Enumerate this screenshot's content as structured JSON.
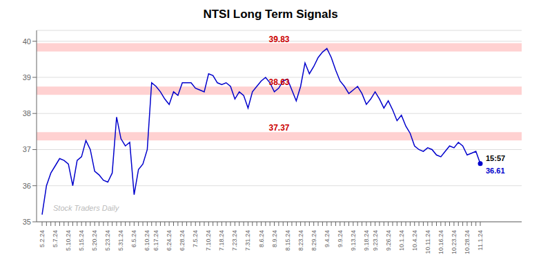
{
  "chart_data": {
    "type": "line",
    "title": "NTSI Long Term Signals",
    "categories": [
      "5.2.24",
      null,
      null,
      "5.7.24",
      null,
      null,
      "5.10.24",
      null,
      null,
      "5.15.24",
      null,
      null,
      "5.20.24",
      null,
      null,
      "5.23.24",
      null,
      null,
      "5.31.24",
      null,
      null,
      "6.5.24",
      null,
      null,
      "6.10.24",
      null,
      "6.17.24",
      null,
      null,
      "6.24.24",
      null,
      null,
      "6.28.24",
      null,
      null,
      "7.5.24",
      null,
      null,
      "7.10.24",
      null,
      null,
      "7.18.24",
      null,
      null,
      "7.23.24",
      null,
      null,
      "7.31.24",
      null,
      null,
      "8.6.24",
      null,
      null,
      "8.9.24",
      null,
      null,
      "8.15.24",
      null,
      null,
      "8.23.24",
      null,
      null,
      "8.29.24",
      null,
      null,
      "9.4.24",
      null,
      null,
      "9.9.24",
      null,
      null,
      "9.13.24",
      null,
      null,
      "9.18.24",
      null,
      "9.23.24",
      null,
      null,
      "9.26.24",
      null,
      null,
      "10.1.24",
      null,
      null,
      "10.4.24",
      null,
      null,
      "10.11.24",
      null,
      null,
      "10.16.24",
      null,
      null,
      "10.23.24",
      null,
      null,
      "10.28.24",
      null,
      null,
      "11.1.24"
    ],
    "values": [
      35.2,
      36.0,
      36.35,
      36.55,
      36.75,
      36.7,
      36.6,
      36.0,
      36.7,
      36.8,
      37.25,
      37.0,
      36.4,
      36.3,
      36.15,
      36.1,
      36.35,
      37.9,
      37.3,
      37.1,
      37.2,
      35.75,
      36.45,
      36.6,
      37.0,
      38.85,
      38.75,
      38.6,
      38.4,
      38.25,
      38.6,
      38.5,
      38.85,
      38.85,
      38.85,
      38.7,
      38.65,
      38.6,
      39.1,
      39.05,
      38.85,
      38.8,
      38.85,
      38.75,
      38.4,
      38.6,
      38.5,
      38.15,
      38.6,
      38.75,
      38.9,
      39.0,
      38.85,
      38.6,
      38.7,
      38.9,
      38.95,
      38.65,
      38.35,
      38.75,
      39.4,
      39.1,
      39.3,
      39.55,
      39.7,
      39.8,
      39.55,
      39.2,
      38.9,
      38.75,
      38.55,
      38.65,
      38.75,
      38.55,
      38.25,
      38.4,
      38.6,
      38.4,
      38.15,
      38.35,
      38.1,
      37.8,
      37.95,
      37.65,
      37.45,
      37.1,
      37.0,
      36.95,
      37.05,
      37.0,
      36.85,
      36.8,
      36.95,
      37.1,
      37.05,
      37.2,
      37.1,
      36.85,
      36.9,
      36.95,
      36.61
    ],
    "color": "#0000cc",
    "ylim": [
      35.0,
      40.3
    ],
    "yticks": [
      35,
      36,
      37,
      38,
      39,
      40
    ],
    "grid": true,
    "hlines": [
      {
        "value": 39.83,
        "label": "39.83",
        "color": "#ffb3b3",
        "label_color": "#cc0000"
      },
      {
        "value": 38.63,
        "label": "38.63",
        "color": "#ffb3b3",
        "label_color": "#cc0000"
      },
      {
        "value": 37.37,
        "label": "37.37",
        "color": "#ffb3b3",
        "label_color": "#cc0000"
      }
    ],
    "annotations": [
      "15:57",
      "36.61"
    ],
    "watermark": "Stock Traders Daily"
  }
}
